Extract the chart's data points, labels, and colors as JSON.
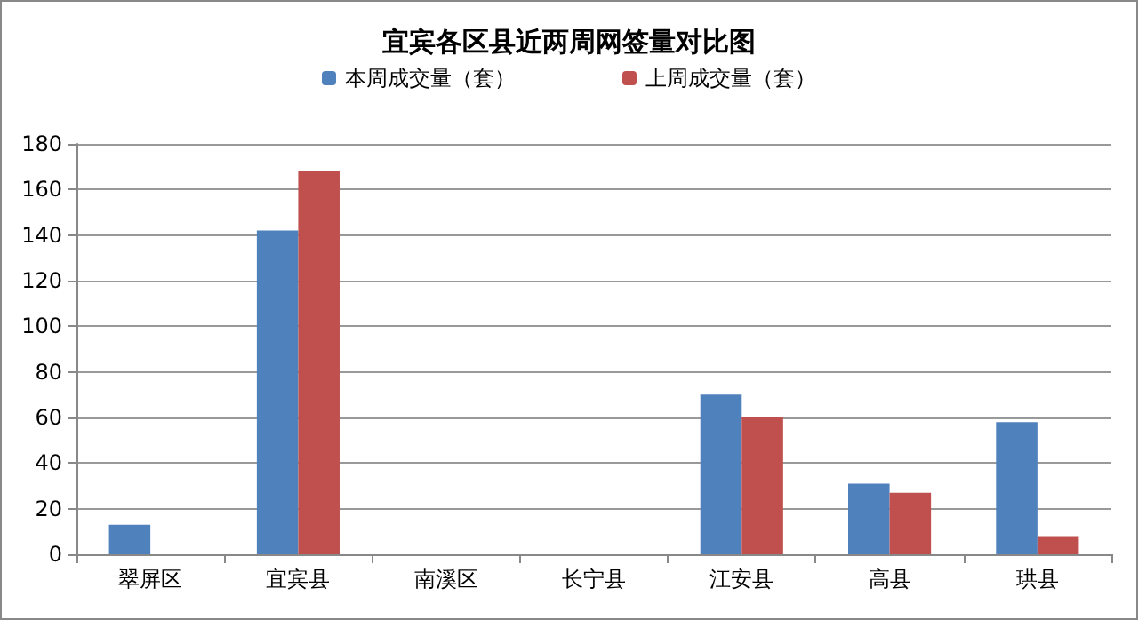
{
  "chart_data": {
    "type": "bar",
    "title": "宜宾各区县近两周网签量对比图",
    "categories": [
      "翠屏区",
      "宜宾县",
      "南溪区",
      "长宁县",
      "江安县",
      "高县",
      "珙县"
    ],
    "series": [
      {
        "name": "本周成交量（套）",
        "color": "#4f81bd",
        "values": [
          13,
          142,
          0,
          0,
          70,
          31,
          58
        ]
      },
      {
        "name": "上周成交量（套）",
        "color": "#c0504d",
        "values": [
          0,
          168,
          0,
          0,
          60,
          27,
          8
        ]
      }
    ],
    "ylim": [
      0,
      180
    ],
    "yticks": [
      0,
      20,
      40,
      60,
      80,
      100,
      120,
      140,
      160,
      180
    ],
    "grid": "y",
    "legend": "top"
  }
}
